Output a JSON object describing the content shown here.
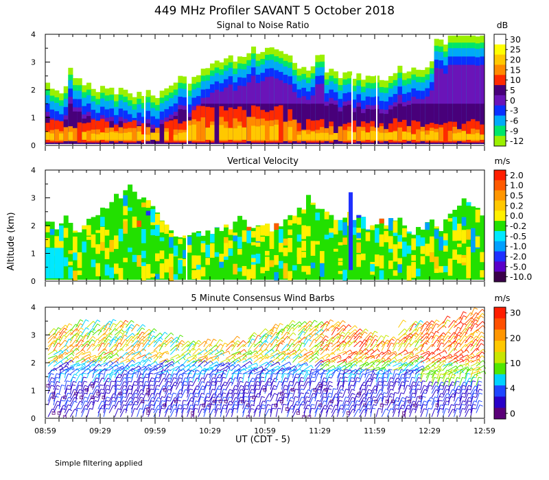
{
  "title": "449 MHz Profiler SAVANT  5 October 2018",
  "y_axis_label": "Altitude (km)",
  "x_axis_label": "UT  (CDT - 5)",
  "footnote": "Simple filtering applied",
  "chart_data": [
    {
      "type": "heatmap",
      "title": "Signal to Noise Ratio",
      "unit": "dB",
      "x_ticks": [
        "08:59",
        "09:29",
        "09:59",
        "10:29",
        "10:59",
        "11:29",
        "11:59",
        "12:29",
        "12:59"
      ],
      "y_ticks": [
        "0",
        "1",
        "2",
        "3",
        "4"
      ],
      "ylim": [
        0,
        4
      ],
      "colorbar": {
        "labels": [
          "30",
          "25",
          "20",
          "15",
          "10",
          "5",
          "0",
          "-3",
          "-6",
          "-9",
          "-12"
        ],
        "colors": [
          "#ffffff",
          "#ffff00",
          "#ffc800",
          "#ff8a00",
          "#ff2a00",
          "#48007a",
          "#6a14b8",
          "#0a30ff",
          "#00aaf8",
          "#00e66a",
          "#9af000"
        ]
      }
    },
    {
      "type": "heatmap",
      "title": "Vertical Velocity",
      "unit": "m/s",
      "x_ticks": [
        "08:59",
        "09:29",
        "09:59",
        "10:29",
        "10:59",
        "11:29",
        "11:59",
        "12:29",
        "12:59"
      ],
      "y_ticks": [
        "0",
        "1",
        "2",
        "3",
        "4"
      ],
      "ylim": [
        0,
        4
      ],
      "colorbar": {
        "labels": [
          "2.0",
          "1.0",
          "0.5",
          "0.2",
          "0.0",
          "-0.2",
          "-0.5",
          "-1.0",
          "-2.0",
          "-5.0",
          "-10.0"
        ],
        "colors": [
          "#ff1e00",
          "#ff5a00",
          "#ff9600",
          "#ffc800",
          "#fff000",
          "#22e000",
          "#00e8ff",
          "#00a0ff",
          "#1f30ff",
          "#5a00c8",
          "#3a004a"
        ]
      }
    },
    {
      "type": "scatter",
      "title": "5 Minute Consensus Wind Barbs",
      "unit": "m/s",
      "x_ticks": [
        "08:59",
        "09:29",
        "09:59",
        "10:29",
        "10:59",
        "11:29",
        "11:59",
        "12:29",
        "12:59"
      ],
      "y_ticks": [
        "0",
        "1",
        "2",
        "3",
        "4"
      ],
      "ylim": [
        0,
        4
      ],
      "colorbar": {
        "labels": [
          "30",
          "20",
          "10",
          "4",
          "0"
        ],
        "colors": [
          "#ff1e00",
          "#ff5000",
          "#ff9600",
          "#ffc800",
          "#c8e600",
          "#50e600",
          "#00d2ff",
          "#1e46ff",
          "#2800c8",
          "#5a0078"
        ]
      }
    }
  ]
}
